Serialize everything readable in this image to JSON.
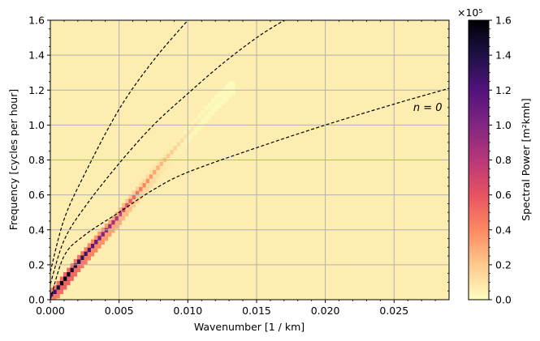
{
  "chart_data": {
    "type": "heatmap",
    "xlabel": "Wavenumber [1 / km]",
    "ylabel": "Frequency [cycles per hour]",
    "xlim": [
      0,
      0.029
    ],
    "ylim": [
      0,
      1.6
    ],
    "x_ticks": [
      0,
      0.005,
      0.01,
      0.015,
      0.02,
      0.025
    ],
    "x_tick_labels": [
      "0.000",
      "0.005",
      "0.010",
      "0.015",
      "0.020",
      "0.025"
    ],
    "y_ticks": [
      0,
      0.2,
      0.4,
      0.6,
      0.8,
      1.0,
      1.2,
      1.4,
      1.6
    ],
    "y_tick_labels": [
      "0.0",
      "0.2",
      "0.4",
      "0.6",
      "0.8",
      "1.0",
      "1.2",
      "1.4",
      "1.6"
    ],
    "grid": true,
    "background_color": "#fdedb0",
    "colorbar": {
      "label": "Spectral Power [m²kmh]",
      "multiplier_label": "×10⁵",
      "range": [
        0,
        1.6
      ],
      "ticks": [
        0,
        0.2,
        0.4,
        0.6,
        0.8,
        1.0,
        1.2,
        1.4,
        1.6
      ],
      "tick_labels": [
        "0.0",
        "0.2",
        "0.4",
        "0.6",
        "0.8",
        "1.0",
        "1.2",
        "1.4",
        "1.6"
      ],
      "colormap": "magma_r",
      "stops": [
        "#fcfdbf",
        "#fec98d",
        "#fc8961",
        "#e85362",
        "#b73779",
        "#822681",
        "#51127c",
        "#1f1147",
        "#000004"
      ]
    },
    "power_ridge": {
      "description_points": [
        {
          "x": 0.0003,
          "y": 0.03,
          "power": 1.2
        },
        {
          "x": 0.001,
          "y": 0.1,
          "power": 1.6
        },
        {
          "x": 0.002,
          "y": 0.2,
          "power": 1.4
        },
        {
          "x": 0.003,
          "y": 0.29,
          "power": 1.2
        },
        {
          "x": 0.004,
          "y": 0.38,
          "power": 1.0
        },
        {
          "x": 0.005,
          "y": 0.47,
          "power": 0.8
        },
        {
          "x": 0.006,
          "y": 0.57,
          "power": 0.55
        },
        {
          "x": 0.007,
          "y": 0.66,
          "power": 0.4
        },
        {
          "x": 0.008,
          "y": 0.76,
          "power": 0.28
        },
        {
          "x": 0.009,
          "y": 0.85,
          "power": 0.18
        },
        {
          "x": 0.01,
          "y": 0.94,
          "power": 0.1
        },
        {
          "x": 0.011,
          "y": 1.03,
          "power": 0.06
        },
        {
          "x": 0.012,
          "y": 1.12,
          "power": 0.03
        },
        {
          "x": 0.0133,
          "y": 1.22,
          "power": 0.015
        }
      ]
    },
    "dispersion_curves": [
      {
        "label": "n = 0",
        "y_intercept": 0.0,
        "points": [
          [
            0,
            0
          ],
          [
            0.001,
            0.25
          ],
          [
            0.0025,
            0.37
          ],
          [
            0.005,
            0.5
          ],
          [
            0.0075,
            0.63
          ],
          [
            0.01,
            0.73
          ],
          [
            0.015,
            0.87
          ],
          [
            0.02,
            1.0
          ],
          [
            0.025,
            1.12
          ],
          [
            0.029,
            1.21
          ]
        ]
      },
      {
        "label": "",
        "y_intercept": 0.09,
        "points": [
          [
            0,
            0.09
          ],
          [
            0.001,
            0.34
          ],
          [
            0.0025,
            0.53
          ],
          [
            0.005,
            0.78
          ],
          [
            0.0075,
            1.0
          ],
          [
            0.01,
            1.18
          ],
          [
            0.0125,
            1.35
          ],
          [
            0.015,
            1.5
          ],
          [
            0.017,
            1.6
          ]
        ]
      },
      {
        "label": "",
        "y_intercept": 0.16,
        "points": [
          [
            0,
            0.16
          ],
          [
            0.001,
            0.46
          ],
          [
            0.0025,
            0.72
          ],
          [
            0.005,
            1.09
          ],
          [
            0.0075,
            1.37
          ],
          [
            0.01,
            1.6
          ]
        ]
      }
    ],
    "annotations": [
      {
        "text": "n = 0",
        "x": 0.0285,
        "y": 1.08
      }
    ]
  }
}
